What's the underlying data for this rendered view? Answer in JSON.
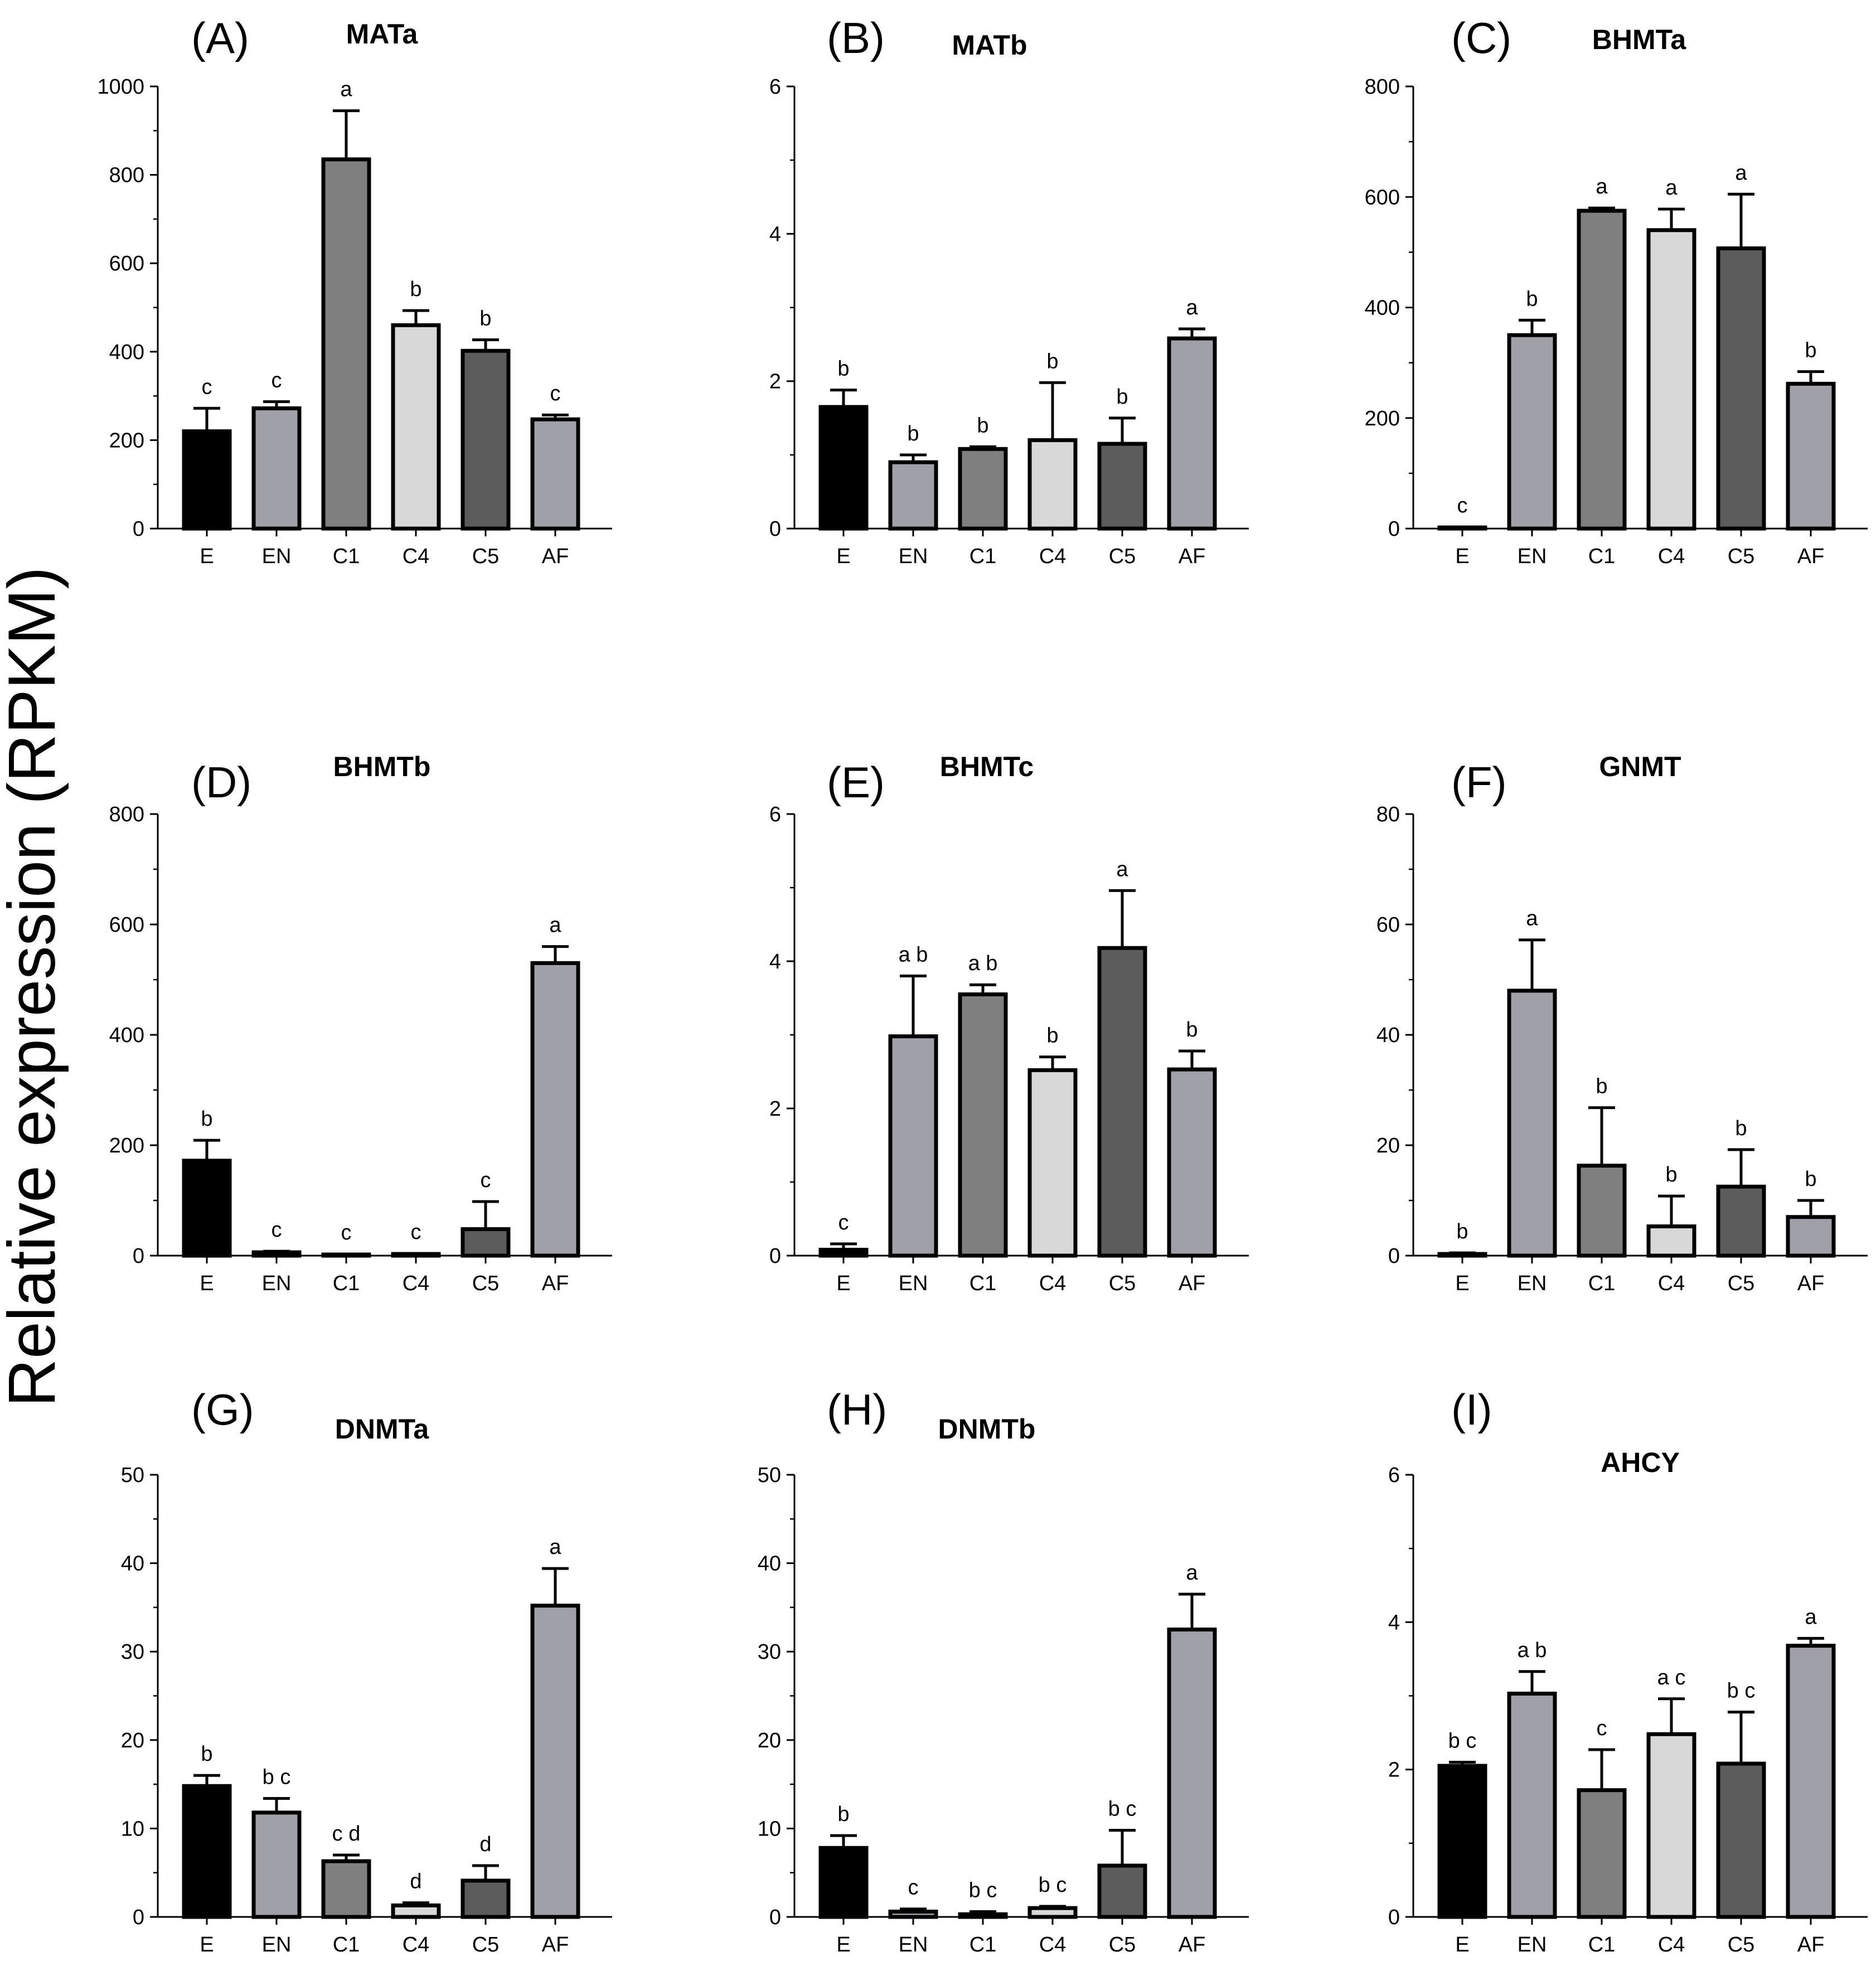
{
  "figure": {
    "y_axis_title": "Relative expression (RPKM)",
    "colors": {
      "E": "#000000",
      "EN": "#a0a0a8",
      "C1": "#7f7f7f",
      "C4": "#d8d8d8",
      "C5": "#5c5c5c",
      "AF": "#a0a0a8"
    }
  },
  "chart_data": [
    {
      "type": "bar",
      "panel": "(A)",
      "title": "MATa",
      "categories": [
        "E",
        "EN",
        "C1",
        "C4",
        "C5",
        "AF"
      ],
      "values": [
        220,
        272,
        835,
        460,
        402,
        247
      ],
      "errors": [
        52,
        15,
        110,
        33,
        25,
        10
      ],
      "significance": [
        "c",
        "c",
        "a",
        "b",
        "b",
        "c"
      ],
      "ylim": [
        0,
        1000
      ],
      "yticks": [
        0,
        200,
        400,
        600,
        800,
        1000
      ],
      "ylabel": "Relative expression (RPKM)"
    },
    {
      "type": "bar",
      "panel": "(B)",
      "title": "MATb",
      "categories": [
        "E",
        "EN",
        "C1",
        "C4",
        "C5",
        "AF"
      ],
      "values": [
        1.65,
        0.9,
        1.08,
        1.2,
        1.15,
        2.58
      ],
      "errors": [
        0.23,
        0.1,
        0.03,
        0.78,
        0.35,
        0.13
      ],
      "significance": [
        "b",
        "b",
        "b",
        "b",
        "b",
        "a"
      ],
      "ylim": [
        0,
        6
      ],
      "yticks": [
        0,
        2,
        4,
        6
      ],
      "ylabel": "Relative expression (RPKM)"
    },
    {
      "type": "bar",
      "panel": "(C)",
      "title": "BHMTa",
      "categories": [
        "E",
        "EN",
        "C1",
        "C4",
        "C5",
        "AF"
      ],
      "values": [
        2,
        350,
        575,
        540,
        507,
        262
      ],
      "errors": [
        1,
        27,
        5,
        38,
        98,
        22
      ],
      "significance": [
        "c",
        "b",
        "a",
        "a",
        "a",
        "b"
      ],
      "ylim": [
        0,
        800
      ],
      "yticks": [
        0,
        200,
        400,
        600,
        800
      ],
      "ylabel": "Relative expression (RPKM)"
    },
    {
      "type": "bar",
      "panel": "(D)",
      "title": "BHMTb",
      "categories": [
        "E",
        "EN",
        "C1",
        "C4",
        "C5",
        "AF"
      ],
      "values": [
        172,
        6,
        2,
        3,
        48,
        530
      ],
      "errors": [
        37,
        2,
        1,
        1,
        50,
        30
      ],
      "significance": [
        "b",
        "c",
        "c",
        "c",
        "c",
        "a"
      ],
      "ylim": [
        0,
        800
      ],
      "yticks": [
        0,
        200,
        400,
        600,
        800
      ],
      "ylabel": "Relative expression (RPKM)"
    },
    {
      "type": "bar",
      "panel": "(E)",
      "title": "BHMTc",
      "categories": [
        "E",
        "EN",
        "C1",
        "C4",
        "C5",
        "AF"
      ],
      "values": [
        0.08,
        2.98,
        3.55,
        2.52,
        4.18,
        2.53
      ],
      "errors": [
        0.08,
        0.82,
        0.13,
        0.18,
        0.78,
        0.25
      ],
      "significance": [
        "c",
        "a b",
        "a b",
        "b",
        "a",
        "b"
      ],
      "ylim": [
        0,
        6
      ],
      "yticks": [
        0,
        2,
        4,
        6
      ],
      "ylabel": "Relative expression (RPKM)"
    },
    {
      "type": "bar",
      "panel": "(F)",
      "title": "GNMT",
      "categories": [
        "E",
        "EN",
        "C1",
        "C4",
        "C5",
        "AF"
      ],
      "values": [
        0.3,
        48,
        16.3,
        5.3,
        12.5,
        7
      ],
      "errors": [
        0.2,
        9.2,
        10.5,
        5.5,
        6.7,
        3
      ],
      "significance": [
        "b",
        "a",
        "b",
        "b",
        "b",
        "b"
      ],
      "ylim": [
        0,
        80
      ],
      "yticks": [
        0,
        20,
        40,
        60,
        80
      ],
      "ylabel": "Relative expression (RPKM)"
    },
    {
      "type": "bar",
      "panel": "(G)",
      "title": "DNMTa",
      "categories": [
        "E",
        "EN",
        "C1",
        "C4",
        "C5",
        "AF"
      ],
      "values": [
        14.8,
        11.8,
        6.3,
        1.3,
        4.1,
        35.2
      ],
      "errors": [
        1.2,
        1.6,
        0.7,
        0.3,
        1.7,
        4.2
      ],
      "significance": [
        "b",
        "b c",
        "c d",
        "d",
        "d",
        "a"
      ],
      "ylim": [
        0,
        50
      ],
      "yticks": [
        0,
        10,
        20,
        30,
        40,
        50
      ],
      "ylabel": "Relative expression (RPKM)"
    },
    {
      "type": "bar",
      "panel": "(H)",
      "title": "DNMTb",
      "categories": [
        "E",
        "EN",
        "C1",
        "C4",
        "C5",
        "AF"
      ],
      "values": [
        7.8,
        0.6,
        0.3,
        1,
        5.8,
        32.5
      ],
      "errors": [
        1.4,
        0.3,
        0.3,
        0.2,
        4,
        4
      ],
      "significance": [
        "b",
        "c",
        "b c",
        "b c",
        "b c",
        "a"
      ],
      "ylim": [
        0,
        50
      ],
      "yticks": [
        0,
        10,
        20,
        30,
        40,
        50
      ],
      "ylabel": "Relative expression (RPKM)"
    },
    {
      "type": "bar",
      "panel": "(I)",
      "title": "AHCY",
      "categories": [
        "E",
        "EN",
        "C1",
        "C4",
        "C5",
        "AF"
      ],
      "values": [
        2.05,
        3.03,
        1.72,
        2.48,
        2.08,
        3.68
      ],
      "errors": [
        0.05,
        0.3,
        0.55,
        0.48,
        0.7,
        0.1
      ],
      "significance": [
        "b c",
        "a b",
        "c",
        "a c",
        "b c",
        "a"
      ],
      "ylim": [
        0,
        6
      ],
      "yticks": [
        0,
        2,
        4,
        6
      ],
      "ylabel": "Relative expression (RPKM)"
    }
  ]
}
